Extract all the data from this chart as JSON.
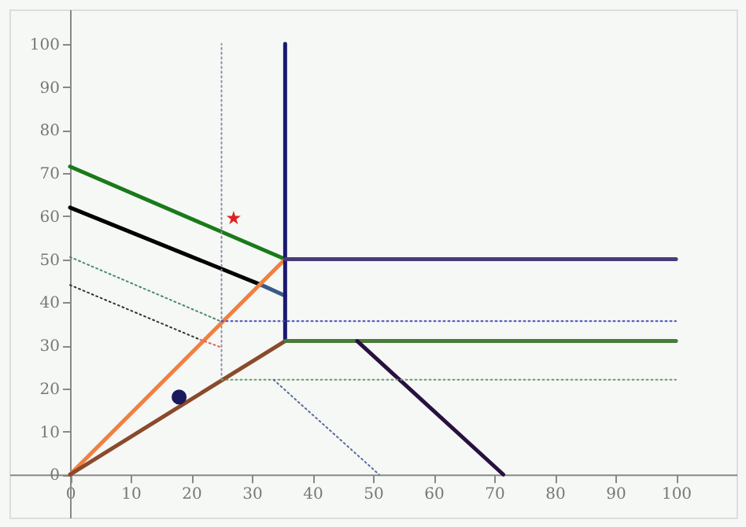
{
  "chart_data": {
    "type": "line",
    "xlim": [
      -10,
      110
    ],
    "ylim": [
      -10,
      108
    ],
    "xticks": [
      0,
      10,
      20,
      30,
      40,
      50,
      60,
      70,
      80,
      90,
      100
    ],
    "yticks": [
      0,
      10,
      20,
      30,
      40,
      50,
      60,
      70,
      80,
      90,
      100
    ],
    "grid": false,
    "legend": false,
    "series": [
      {
        "type": "line",
        "x": [
          0,
          35.5
        ],
        "values": [
          71.5,
          50
        ],
        "color": "#1a7a1a",
        "line_style": "solid"
      },
      {
        "x": [
          0,
          31.6
        ],
        "values": [
          62,
          44
        ],
        "color": "#000000",
        "line_style": "solid"
      },
      {
        "x": [
          31.6,
          35.5
        ],
        "values": [
          44,
          41.5
        ],
        "color": "#3a5a8a",
        "line_style": "solid"
      },
      {
        "x": [
          0,
          35.5
        ],
        "values": [
          0,
          50
        ],
        "color": "#f08040",
        "line_style": "solid"
      },
      {
        "x": [
          0,
          35.5
        ],
        "values": [
          0,
          31
        ],
        "color": "#8b4a2b",
        "line_style": "solid"
      },
      {
        "x": [
          35.5,
          35.5
        ],
        "values": [
          31,
          100
        ],
        "color": "#1a1a6e",
        "line_style": "solid"
      },
      {
        "x": [
          35.5,
          100
        ],
        "values": [
          50,
          50
        ],
        "color": "#4b3b7a",
        "line_style": "solid"
      },
      {
        "x": [
          35.5,
          100
        ],
        "values": [
          31,
          31
        ],
        "color": "#4a7a3a",
        "line_style": "solid"
      },
      {
        "x": [
          47.4,
          71.5
        ],
        "values": [
          31,
          0
        ],
        "color": "#2a1040",
        "line_style": "solid"
      },
      {
        "x": [
          25,
          25
        ],
        "values": [
          22,
          100
        ],
        "color": "#9a8aaa",
        "line_style": "dotted"
      },
      {
        "x": [
          25,
          100
        ],
        "values": [
          35.6,
          35.6
        ],
        "color": "#4a4ac0",
        "line_style": "dotted"
      },
      {
        "x": [
          25,
          100
        ],
        "values": [
          22,
          22
        ],
        "color": "#6a9a6a",
        "line_style": "dotted"
      },
      {
        "x": [
          0,
          25
        ],
        "values": [
          50.5,
          35.5
        ],
        "color": "#4a8a6a",
        "line_style": "dotted"
      },
      {
        "x": [
          0,
          21.5
        ],
        "values": [
          44,
          31.3
        ],
        "color": "#333333",
        "line_style": "dotted"
      },
      {
        "x": [
          21.5,
          25
        ],
        "values": [
          31.3,
          29.5
        ],
        "color": "#e06060",
        "line_style": "dotted"
      },
      {
        "x": [
          33.6,
          51
        ],
        "values": [
          22,
          0
        ],
        "color": "#5a6aa0",
        "line_style": "dotted"
      },
      {
        "type": "scatter",
        "x": [
          27
        ],
        "values": [
          59.5
        ],
        "color": "#e02020",
        "marker": "star"
      },
      {
        "type": "scatter",
        "x": [
          18
        ],
        "values": [
          18
        ],
        "color": "#1a1a5e",
        "marker": "circle"
      }
    ]
  }
}
